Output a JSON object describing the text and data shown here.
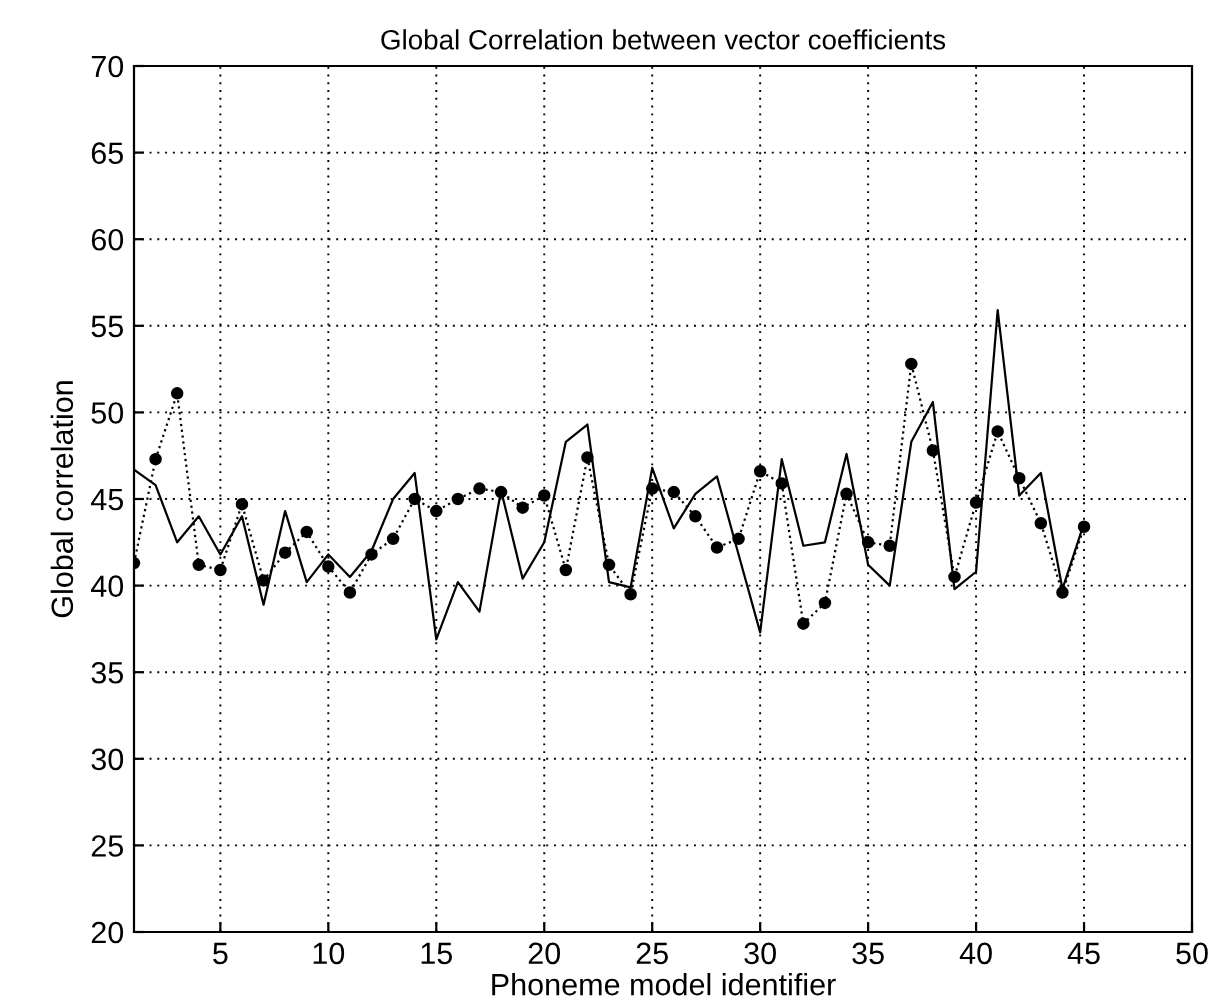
{
  "chart_data": {
    "type": "line",
    "title": "Global Correlation between vector coefficients",
    "xlabel": "Phoneme model identifier",
    "ylabel": "Global correlation",
    "x": [
      1,
      2,
      3,
      4,
      5,
      6,
      7,
      8,
      9,
      10,
      11,
      12,
      13,
      14,
      15,
      16,
      17,
      18,
      19,
      20,
      21,
      22,
      23,
      24,
      25,
      26,
      27,
      28,
      29,
      30,
      31,
      32,
      33,
      34,
      35,
      36,
      37,
      38,
      39,
      40,
      41,
      42,
      43,
      44,
      45
    ],
    "series": [
      {
        "color": "#000000",
        "line_style": "solid",
        "marker": "none",
        "values": [
          46.7,
          45.8,
          42.5,
          44,
          41.8,
          44,
          38.9,
          44.3,
          40.2,
          41.8,
          40.5,
          42,
          45,
          46.5,
          36.9,
          40.2,
          38.5,
          45.5,
          40.4,
          42.5,
          48.3,
          49.3,
          40.2,
          39.9,
          46.8,
          43.3,
          45.3,
          46.3,
          41.8,
          37.3,
          47.3,
          42.3,
          42.5,
          47.6,
          41.2,
          40,
          48.3,
          50.6,
          39.8,
          40.8,
          55.9,
          45.2,
          46.5,
          39.8,
          43.6
        ]
      },
      {
        "color": "#000000",
        "line_style": "dotted",
        "marker": "circle",
        "values": [
          41.3,
          47.3,
          51.1,
          41.2,
          40.9,
          44.7,
          40.3,
          41.9,
          43.1,
          41.1,
          39.6,
          41.8,
          42.7,
          45,
          44.3,
          45,
          45.6,
          45.4,
          44.5,
          45.2,
          40.9,
          47.4,
          41.2,
          39.5,
          45.6,
          45.4,
          44,
          42.2,
          42.7,
          46.6,
          45.9,
          37.8,
          39,
          45.3,
          42.5,
          42.3,
          52.8,
          47.8,
          40.5,
          44.8,
          48.9,
          46.2,
          43.6,
          39.6,
          43.4
        ]
      }
    ],
    "xlim": [
      1,
      50
    ],
    "xticks": [
      5,
      10,
      15,
      20,
      25,
      30,
      35,
      40,
      45,
      50
    ],
    "ylim": [
      20,
      70
    ],
    "yticks": [
      20,
      25,
      30,
      35,
      40,
      45,
      50,
      55,
      60,
      65,
      70
    ],
    "grid": true
  }
}
